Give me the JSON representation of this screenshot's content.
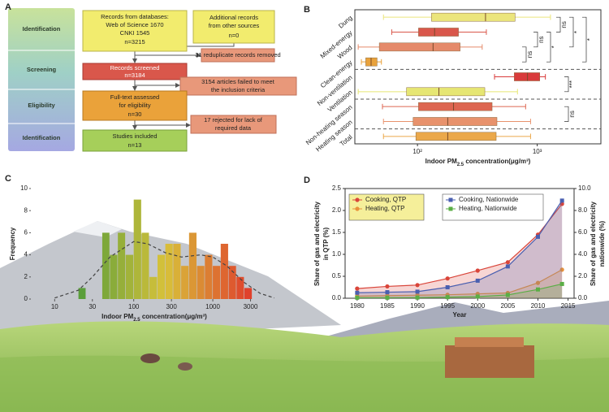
{
  "panel_labels": [
    "A",
    "B",
    "C",
    "D"
  ],
  "flowchart": {
    "stages": [
      "Identification",
      "Screening",
      "Eligibility",
      "Identification"
    ],
    "boxes": [
      {
        "lines": [
          "Records from databases:",
          "Web of Science 1670",
          "CNKI 1545",
          "n=3215"
        ]
      },
      {
        "lines": [
          "Additional records",
          "from other sources",
          "n=0"
        ]
      },
      {
        "lines": [
          "31 reduplicate records removed"
        ]
      },
      {
        "lines": [
          "Records screened",
          "n=3184"
        ]
      },
      {
        "lines": [
          "3154 articles failed to meet",
          "the inclusion criteria"
        ]
      },
      {
        "lines": [
          "Full-text assessed",
          "for eligibility",
          "n=30"
        ]
      },
      {
        "lines": [
          "17 rejected for lack of",
          "required data"
        ]
      },
      {
        "lines": [
          "Studies included",
          "n=13"
        ]
      }
    ]
  },
  "chart_data": [
    {
      "type": "box",
      "categories": [
        "Dung",
        "Mixed-energy",
        "Wood",
        "Clean-energy",
        "Non-ventilation",
        "Ventilation",
        "Non-heating season",
        "Heating season",
        "Total"
      ],
      "values": [
        [
          52,
          131,
          370,
          653,
          1290
        ],
        [
          61,
          102,
          139,
          220,
          376
        ],
        [
          32,
          48,
          135,
          227,
          347
        ],
        [
          34,
          37,
          41,
          46,
          50
        ],
        [
          440,
          643,
          829,
          1050,
          1170
        ],
        [
          32,
          81,
          151,
          365,
          684
        ],
        [
          51,
          102,
          200,
          420,
          800
        ],
        [
          52,
          92,
          179,
          461,
          880
        ],
        [
          52,
          97,
          179,
          454,
          880
        ]
      ],
      "colors": [
        "#ebe57c",
        "#d9574b",
        "#e58a6a",
        "#e9a23b",
        "#d93b3b",
        "#e6e673",
        "#dd6650",
        "#e8926c",
        "#eba84a"
      ],
      "log_x": true,
      "xlim": [
        30,
        3400
      ],
      "xticks": [
        {
          "value": 100,
          "label": "10²"
        },
        {
          "value": 1000,
          "label": "10³"
        }
      ],
      "xlabel_parts": [
        "Indoor PM",
        "2.5",
        " concentration(μg/m³)"
      ],
      "significance": [
        "ns",
        "ns",
        "ns",
        "*",
        "*",
        "*",
        "***",
        "ns"
      ]
    },
    {
      "type": "histogram",
      "bins": [
        20,
        25,
        32,
        40,
        50,
        63,
        79,
        100,
        126,
        158,
        200,
        251,
        316,
        398,
        501,
        631,
        794,
        1000,
        1259,
        1585,
        1995,
        2512,
        3162
      ],
      "values": [
        1,
        0,
        0,
        6,
        4,
        6,
        4,
        9,
        6,
        2,
        4,
        5,
        5,
        3,
        6,
        3,
        4,
        3,
        5,
        3,
        2,
        1
      ],
      "color_gradient": [
        "#5a9e3a",
        "#d8c23a",
        "#e0412c"
      ],
      "fit": {
        "x": [
          10,
          20,
          30,
          50,
          100,
          150,
          250,
          400,
          700,
          1000,
          1500,
          2500,
          4000,
          6000
        ],
        "values": [
          0.1,
          0.8,
          2,
          3.8,
          5.2,
          5,
          4.2,
          3.8,
          4,
          3.8,
          3,
          1.5,
          0.5,
          0.1
        ],
        "color": "#444444"
      },
      "log_x": true,
      "xlim": [
        5,
        8000
      ],
      "xticks": [
        10,
        30,
        100,
        300,
        1000,
        3000
      ],
      "ylim": [
        0,
        10
      ],
      "yticks": [
        0,
        2,
        4,
        6,
        8,
        10
      ],
      "ylabel": "Frequency",
      "xlabel_parts": [
        "Indoor PM",
        "2.5",
        " concentration(μg/m³)"
      ]
    },
    {
      "type": "line",
      "x": [
        1980,
        1985,
        1990,
        1995,
        2000,
        2005,
        2010,
        2014
      ],
      "series": [
        {
          "name": "Cooking, QTP",
          "color": "#d9453a",
          "marker": "circle",
          "axis": "y",
          "values": [
            0.22,
            0.27,
            0.3,
            0.45,
            0.63,
            0.82,
            1.45,
            2.15
          ]
        },
        {
          "name": "Heating, QTP",
          "color": "#e8923a",
          "marker": "circle",
          "axis": "y",
          "values": [
            0.05,
            0.06,
            0.07,
            0.08,
            0.1,
            0.12,
            0.35,
            0.65
          ]
        },
        {
          "name": "Cooking, Nationwide",
          "color": "#4a5fb0",
          "marker": "square",
          "axis": "y2",
          "values": [
            0.5,
            0.55,
            0.6,
            1.0,
            1.6,
            2.9,
            5.6,
            8.9
          ]
        },
        {
          "name": "Heating, Nationwide",
          "color": "#5aae45",
          "marker": "square",
          "axis": "y2",
          "values": [
            0.05,
            0.05,
            0.06,
            0.1,
            0.15,
            0.3,
            0.8,
            1.3
          ]
        }
      ],
      "area": true,
      "xlim": [
        1978,
        2016
      ],
      "xticks": [
        1980,
        1985,
        1990,
        1995,
        2000,
        2005,
        2010,
        2015
      ],
      "ylim": [
        0,
        2.5
      ],
      "yticks": [
        {
          "value": 0,
          "label": "0.0"
        },
        0.5,
        {
          "value": 1,
          "label": "1.0"
        },
        1.5,
        {
          "value": 2,
          "label": "2.0"
        },
        2.5
      ],
      "y2lim": [
        0,
        10
      ],
      "y2ticks": [
        {
          "value": 0,
          "label": "0.0"
        },
        {
          "value": 2,
          "label": "2.0"
        },
        {
          "value": 4,
          "label": "4.0"
        },
        {
          "value": 6,
          "label": "6.0"
        },
        {
          "value": 8,
          "label": "8.0"
        },
        {
          "value": 10,
          "label": "10.0"
        }
      ],
      "xlabel": "Year",
      "ylabel": [
        "Share of gas and electricity",
        "in QTP (%)"
      ],
      "y2label": [
        "Share of gas and electricity",
        "nationwide (%)"
      ]
    }
  ]
}
